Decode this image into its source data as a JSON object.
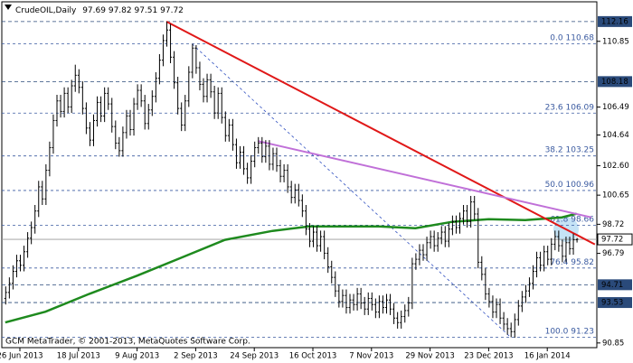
{
  "chart_data": {
    "type": "ohlc",
    "title": "CrudeOIL,Daily",
    "footer": "GCM MetaTrader, © 2001-2013, MetaQuotes Software Corp.",
    "categories": [
      null,
      null,
      null,
      null,
      "26 Jun 2013",
      null,
      null,
      null,
      null,
      null,
      null,
      null,
      null,
      null,
      null,
      null,
      null,
      null,
      null,
      null,
      "18 Jul 2013",
      null,
      null,
      null,
      null,
      null,
      null,
      null,
      null,
      null,
      null,
      null,
      null,
      null,
      null,
      null,
      "9 Aug 2013",
      null,
      null,
      null,
      null,
      null,
      null,
      null,
      null,
      null,
      null,
      null,
      null,
      null,
      null,
      null,
      "2 Sep 2013",
      null,
      null,
      null,
      null,
      null,
      null,
      null,
      null,
      null,
      null,
      null,
      null,
      null,
      null,
      null,
      "24 Sep 2013",
      null,
      null,
      null,
      null,
      null,
      null,
      null,
      null,
      null,
      null,
      null,
      null,
      null,
      null,
      null,
      "16 Oct 2013",
      null,
      null,
      null,
      null,
      null,
      null,
      null,
      null,
      null,
      null,
      null,
      null,
      null,
      null,
      null,
      "7 Nov 2013",
      null,
      null,
      null,
      null,
      null,
      null,
      null,
      null,
      null,
      null,
      null,
      null,
      null,
      null,
      null,
      "29 Nov 2013",
      null,
      null,
      null,
      null,
      null,
      null,
      null,
      null,
      null,
      null,
      null,
      null,
      null,
      null,
      null,
      "23 Dec 2013",
      null,
      null,
      null,
      null,
      null,
      null,
      null,
      null,
      null,
      null,
      null,
      null,
      null,
      null,
      null,
      "16 Jan 2014",
      null,
      null,
      null,
      null,
      null,
      null,
      null,
      null
    ],
    "bars": [
      [
        93.8,
        94.6,
        93.4,
        94.2
      ],
      [
        94.2,
        95.2,
        93.8,
        94.8
      ],
      [
        94.8,
        96.0,
        94.4,
        95.6
      ],
      [
        95.6,
        96.7,
        95.2,
        96.3
      ],
      [
        96.3,
        96.7,
        95.6,
        96.0
      ],
      [
        96.0,
        97.3,
        95.6,
        96.9
      ],
      [
        96.9,
        98.2,
        96.5,
        97.8
      ],
      [
        97.8,
        98.9,
        97.4,
        98.5
      ],
      [
        98.5,
        100.0,
        98.1,
        99.6
      ],
      [
        99.6,
        101.6,
        99.2,
        101.2
      ],
      [
        101.2,
        101.6,
        100.0,
        100.4
      ],
      [
        100.4,
        102.7,
        100.0,
        102.3
      ],
      [
        102.3,
        104.2,
        101.9,
        103.8
      ],
      [
        103.8,
        106.0,
        103.4,
        105.6
      ],
      [
        105.6,
        107.3,
        105.2,
        106.9
      ],
      [
        106.9,
        107.3,
        105.8,
        106.2
      ],
      [
        106.2,
        107.8,
        105.8,
        107.4
      ],
      [
        107.4,
        107.8,
        106.1,
        106.5
      ],
      [
        106.5,
        108.3,
        106.1,
        107.9
      ],
      [
        107.9,
        109.3,
        107.5,
        108.6
      ],
      [
        108.6,
        109.0,
        107.4,
        107.8
      ],
      [
        107.8,
        108.2,
        106.0,
        106.4
      ],
      [
        106.4,
        106.8,
        104.7,
        105.1
      ],
      [
        105.1,
        105.5,
        103.9,
        104.3
      ],
      [
        104.3,
        106.0,
        103.9,
        105.6
      ],
      [
        105.6,
        107.2,
        105.2,
        106.8
      ],
      [
        106.8,
        107.2,
        105.5,
        105.9
      ],
      [
        105.9,
        107.8,
        105.5,
        107.4
      ],
      [
        107.4,
        107.8,
        106.3,
        106.7
      ],
      [
        106.7,
        107.1,
        104.8,
        105.2
      ],
      [
        105.2,
        105.6,
        103.7,
        104.1
      ],
      [
        104.1,
        104.5,
        103.2,
        103.6
      ],
      [
        103.6,
        105.2,
        103.2,
        104.8
      ],
      [
        104.8,
        106.3,
        104.4,
        105.9
      ],
      [
        105.9,
        106.3,
        104.6,
        105.0
      ],
      [
        105.0,
        107.1,
        104.6,
        106.7
      ],
      [
        106.7,
        108.0,
        106.3,
        107.6
      ],
      [
        107.6,
        108.0,
        106.5,
        106.9
      ],
      [
        106.9,
        107.3,
        105.0,
        105.4
      ],
      [
        105.4,
        106.7,
        105.0,
        106.3
      ],
      [
        106.3,
        107.6,
        105.9,
        107.2
      ],
      [
        107.2,
        108.8,
        106.8,
        108.4
      ],
      [
        108.4,
        110.0,
        108.0,
        109.6
      ],
      [
        109.6,
        111.3,
        109.2,
        110.9
      ],
      [
        110.9,
        112.16,
        110.5,
        111.6
      ],
      [
        111.6,
        112.0,
        109.4,
        109.8
      ],
      [
        109.8,
        110.2,
        107.7,
        108.1
      ],
      [
        108.1,
        108.5,
        106.0,
        106.4
      ],
      [
        106.4,
        106.8,
        104.9,
        105.3
      ],
      [
        105.3,
        107.3,
        104.9,
        106.9
      ],
      [
        106.9,
        109.2,
        106.5,
        108.8
      ],
      [
        108.8,
        110.68,
        108.4,
        110.4
      ],
      [
        110.4,
        110.6,
        108.7,
        109.1
      ],
      [
        109.1,
        109.5,
        107.6,
        108.0
      ],
      [
        108.0,
        108.4,
        106.8,
        107.2
      ],
      [
        107.2,
        108.7,
        106.8,
        108.3
      ],
      [
        108.3,
        108.7,
        107.1,
        107.5
      ],
      [
        107.5,
        107.9,
        105.7,
        106.1
      ],
      [
        106.1,
        107.8,
        105.7,
        107.4
      ],
      [
        107.4,
        107.8,
        105.4,
        105.8
      ],
      [
        105.8,
        106.2,
        104.2,
        104.6
      ],
      [
        104.6,
        105.7,
        104.2,
        105.3
      ],
      [
        105.3,
        105.7,
        103.6,
        104.0
      ],
      [
        104.0,
        104.4,
        102.4,
        102.8
      ],
      [
        102.8,
        103.9,
        102.4,
        103.5
      ],
      [
        103.5,
        103.9,
        102.0,
        102.4
      ],
      [
        102.4,
        102.8,
        101.4,
        101.8
      ],
      [
        101.8,
        103.3,
        101.4,
        102.9
      ],
      [
        102.9,
        104.2,
        102.5,
        103.8
      ],
      [
        103.8,
        104.5,
        103.4,
        104.1
      ],
      [
        104.1,
        104.5,
        102.8,
        103.2
      ],
      [
        103.2,
        104.3,
        102.8,
        103.9
      ],
      [
        103.9,
        104.3,
        102.3,
        102.7
      ],
      [
        102.7,
        103.8,
        102.3,
        103.4
      ],
      [
        103.4,
        103.8,
        102.2,
        102.6
      ],
      [
        102.6,
        103.0,
        101.5,
        101.9
      ],
      [
        101.9,
        102.7,
        101.5,
        102.3
      ],
      [
        102.3,
        102.7,
        100.8,
        101.2
      ],
      [
        101.2,
        101.6,
        100.1,
        100.5
      ],
      [
        100.5,
        101.4,
        100.1,
        101.0
      ],
      [
        101.0,
        101.4,
        99.9,
        100.3
      ],
      [
        100.3,
        100.7,
        99.2,
        99.6
      ],
      [
        99.6,
        100.0,
        98.0,
        98.4
      ],
      [
        98.4,
        98.8,
        97.2,
        97.6
      ],
      [
        97.6,
        98.6,
        97.2,
        98.2
      ],
      [
        98.2,
        98.6,
        96.9,
        97.3
      ],
      [
        97.3,
        98.3,
        96.9,
        97.9
      ],
      [
        97.9,
        98.3,
        96.4,
        96.8
      ],
      [
        96.8,
        97.2,
        95.5,
        95.9
      ],
      [
        95.9,
        96.3,
        94.8,
        95.2
      ],
      [
        95.2,
        95.6,
        93.9,
        94.3
      ],
      [
        94.3,
        94.7,
        93.2,
        93.6
      ],
      [
        93.6,
        94.4,
        93.2,
        94.0
      ],
      [
        94.0,
        94.4,
        92.8,
        93.2
      ],
      [
        93.2,
        94.1,
        92.8,
        93.7
      ],
      [
        93.7,
        94.1,
        93.0,
        93.4
      ],
      [
        93.4,
        94.5,
        93.0,
        94.1
      ],
      [
        94.1,
        94.5,
        93.1,
        93.5
      ],
      [
        93.5,
        93.9,
        92.7,
        93.1
      ],
      [
        93.1,
        94.2,
        92.7,
        93.8
      ],
      [
        93.8,
        94.2,
        93.0,
        93.4
      ],
      [
        93.4,
        93.8,
        92.5,
        92.9
      ],
      [
        92.9,
        94.0,
        92.5,
        93.6
      ],
      [
        93.6,
        94.0,
        92.8,
        93.2
      ],
      [
        93.2,
        94.1,
        92.8,
        93.7
      ],
      [
        93.7,
        94.1,
        92.7,
        93.1
      ],
      [
        93.1,
        93.5,
        92.1,
        92.5
      ],
      [
        92.5,
        92.9,
        91.8,
        92.2
      ],
      [
        92.2,
        93.0,
        91.8,
        92.6
      ],
      [
        92.6,
        93.4,
        92.2,
        93.0
      ],
      [
        93.0,
        93.9,
        92.6,
        93.5
      ],
      [
        93.5,
        96.5,
        93.1,
        96.1
      ],
      [
        96.1,
        96.8,
        95.7,
        96.4
      ],
      [
        96.4,
        97.4,
        96.0,
        97.0
      ],
      [
        97.0,
        97.4,
        96.3,
        96.7
      ],
      [
        96.7,
        97.9,
        96.3,
        97.5
      ],
      [
        97.5,
        98.3,
        97.1,
        97.9
      ],
      [
        97.9,
        98.3,
        96.9,
        97.3
      ],
      [
        97.3,
        98.2,
        96.9,
        97.8
      ],
      [
        97.8,
        98.6,
        97.4,
        98.2
      ],
      [
        98.2,
        98.6,
        97.2,
        97.6
      ],
      [
        97.6,
        98.8,
        97.2,
        98.4
      ],
      [
        98.4,
        99.3,
        98.0,
        98.9
      ],
      [
        98.9,
        99.3,
        98.1,
        98.5
      ],
      [
        98.5,
        99.5,
        98.1,
        99.1
      ],
      [
        99.1,
        100.0,
        98.7,
        99.6
      ],
      [
        99.6,
        100.0,
        98.5,
        98.9
      ],
      [
        98.9,
        100.6,
        98.5,
        100.2
      ],
      [
        100.2,
        100.6,
        99.0,
        99.4
      ],
      [
        99.4,
        99.8,
        95.8,
        96.2
      ],
      [
        96.2,
        96.6,
        95.0,
        95.4
      ],
      [
        95.4,
        95.8,
        93.7,
        94.1
      ],
      [
        94.1,
        94.5,
        93.2,
        93.6
      ],
      [
        93.6,
        94.0,
        92.5,
        92.9
      ],
      [
        92.9,
        93.8,
        92.5,
        93.4
      ],
      [
        93.4,
        93.8,
        92.1,
        92.5
      ],
      [
        92.5,
        92.9,
        91.7,
        92.1
      ],
      [
        92.1,
        92.5,
        91.4,
        91.8
      ],
      [
        91.8,
        92.2,
        91.23,
        91.6
      ],
      [
        91.6,
        92.8,
        91.2,
        92.4
      ],
      [
        92.4,
        93.7,
        92.0,
        93.3
      ],
      [
        93.3,
        94.3,
        92.9,
        93.9
      ],
      [
        93.9,
        94.7,
        93.5,
        94.3
      ],
      [
        94.3,
        95.2,
        93.9,
        94.8
      ],
      [
        94.8,
        96.0,
        94.4,
        95.6
      ],
      [
        95.6,
        96.9,
        95.2,
        96.5
      ],
      [
        96.5,
        96.9,
        95.6,
        96.0
      ],
      [
        96.0,
        97.3,
        95.6,
        96.9
      ],
      [
        96.9,
        97.3,
        96.0,
        96.4
      ],
      [
        96.4,
        97.8,
        96.0,
        97.4
      ],
      [
        97.4,
        98.3,
        97.0,
        97.9
      ],
      [
        97.9,
        98.3,
        96.9,
        97.3
      ],
      [
        97.3,
        97.7,
        96.2,
        96.6
      ],
      [
        96.6,
        97.9,
        96.2,
        97.5
      ],
      [
        97.5,
        97.9,
        96.7,
        97.1
      ],
      [
        97.1,
        98.1,
        96.7,
        97.69
      ],
      [
        97.69,
        97.82,
        97.51,
        97.72
      ]
    ],
    "bar_color": "#000000",
    "ylim": [
      90.54,
      113.47
    ],
    "yticks": [
      110.85,
      106.49,
      104.64,
      {
        "value": 102.6,
        "label": "102.60"
      },
      100.65,
      98.72,
      96.79,
      90.85
    ],
    "levels": [
      112.16,
      108.18,
      94.71,
      93.53
    ],
    "level_color": "#2a4a7a",
    "fib_levels": [
      {
        "ratio": "0.0",
        "value": 110.68
      },
      {
        "ratio": "23.6",
        "value": 106.09
      },
      {
        "ratio": "38.2",
        "value": 103.25
      },
      {
        "ratio": "50.0",
        "value": 100.96
      },
      {
        "ratio": "61.8",
        "value": 98.66
      },
      {
        "ratio": "76.4",
        "value": 95.82
      },
      {
        "ratio": "100.0",
        "value": 91.23
      }
    ],
    "fib_bars": [
      51,
      138
    ],
    "fib_color": "#3a5aa0",
    "ma_x": [
      0,
      11,
      23,
      36,
      48,
      60,
      73,
      83,
      92,
      102,
      112,
      122,
      132,
      142,
      152,
      156
    ],
    "ma_values": [
      92.21,
      92.92,
      94.11,
      95.31,
      96.5,
      97.69,
      98.28,
      98.58,
      98.58,
      98.58,
      98.46,
      98.88,
      99.06,
      99.0,
      99.18,
      99.42
    ],
    "ma_color": "#1e8a1e",
    "trendlines": [
      {
        "color": "#e01818",
        "points": [
          [
            44,
            112.16
          ],
          [
            161,
            97.39
          ]
        ]
      },
      {
        "color": "#c070d8",
        "points": [
          [
            69,
            104.24
          ],
          [
            160,
            99.18
          ]
        ]
      }
    ]
  }
}
